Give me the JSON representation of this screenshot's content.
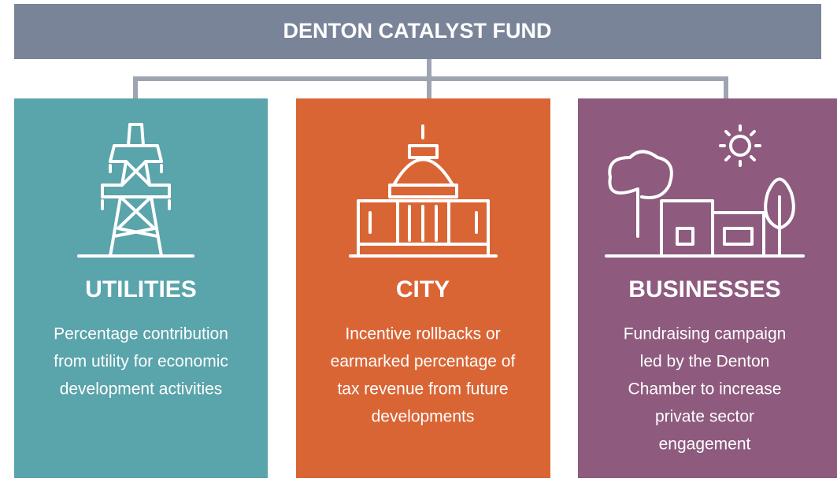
{
  "header": {
    "title": "DENTON CATALYST FUND"
  },
  "nodes": [
    {
      "title": "UTILITIES",
      "lines": [
        "Percentage contribution",
        "from utility for economic",
        "development activities"
      ]
    },
    {
      "title": "CITY",
      "lines": [
        "Incentive rollbacks or",
        "earmarked percentage of",
        "tax revenue from future",
        "developments"
      ]
    },
    {
      "title": "BUSINESSES",
      "lines": [
        "Fundraising campaign",
        "led by the Denton",
        "Chamber to increase",
        "private sector",
        "engagement"
      ]
    }
  ]
}
